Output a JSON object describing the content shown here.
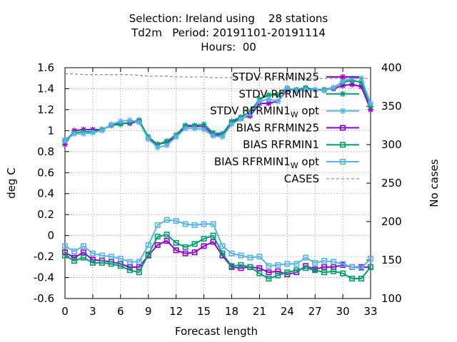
{
  "title_lines": [
    "Selection: Ireland using    28 stations",
    "Td2m   Period: 20191101-20191114",
    "Hours:  00"
  ],
  "chart_data": {
    "type": "line",
    "xlabel": "Forecast length",
    "ylabel": "deg C",
    "y2label": "No cases",
    "xlim": [
      0,
      33
    ],
    "ylim": [
      -0.6,
      1.6
    ],
    "y2lim": [
      100,
      400
    ],
    "x_ticks": [
      "0",
      "3",
      "6",
      "9",
      "12",
      "15",
      "18",
      "21",
      "24",
      "27",
      "30",
      "33"
    ],
    "y_ticks": [
      "-0.6",
      "-0.4",
      "-0.2",
      "0",
      "0.2",
      "0.4",
      "0.6",
      "0.8",
      "1",
      "1.2",
      "1.4",
      "1.6"
    ],
    "y2_ticks": [
      "100",
      "150",
      "200",
      "250",
      "300",
      "350",
      "400"
    ],
    "grid": true,
    "legend_position": "top-right",
    "x": [
      0,
      1,
      2,
      3,
      4,
      5,
      6,
      7,
      8,
      9,
      10,
      11,
      12,
      13,
      14,
      15,
      16,
      17,
      18,
      19,
      20,
      21,
      22,
      23,
      24,
      25,
      26,
      27,
      28,
      29,
      30,
      31,
      32,
      33
    ],
    "series": [
      {
        "name": "STDV RFRMIN25",
        "name_main": "STDV RFRMIN25",
        "name_sub": "",
        "name_tail": "",
        "color": "#9400d3",
        "marker": "star",
        "axis": "y",
        "values": [
          0.87,
          1.0,
          1.01,
          1.01,
          1.01,
          1.05,
          1.07,
          1.07,
          1.09,
          0.92,
          0.87,
          0.89,
          0.94,
          1.04,
          1.04,
          1.04,
          0.96,
          0.96,
          1.08,
          1.12,
          1.14,
          1.26,
          1.26,
          1.28,
          1.39,
          1.39,
          1.4,
          1.39,
          1.39,
          1.4,
          1.43,
          1.44,
          1.42,
          1.2
        ]
      },
      {
        "name": "STDV RFRMIN1",
        "name_main": "STDV RFRMIN1",
        "name_sub": "",
        "name_tail": "",
        "color": "#009e73",
        "marker": "star",
        "axis": "y",
        "values": [
          0.91,
          0.98,
          0.99,
          0.99,
          1.01,
          1.05,
          1.06,
          1.08,
          1.1,
          0.94,
          0.87,
          0.9,
          0.96,
          1.05,
          1.05,
          1.06,
          0.98,
          0.97,
          1.09,
          1.13,
          1.18,
          1.3,
          1.34,
          1.34,
          1.4,
          1.39,
          1.41,
          1.39,
          1.39,
          1.41,
          1.46,
          1.48,
          1.46,
          1.23
        ]
      },
      {
        "name": "STDV RFRMIN1_W opt",
        "name_main": "STDV RFRMIN1",
        "name_sub": "W",
        "name_tail": " opt",
        "color": "#56b4e9",
        "marker": "star",
        "axis": "y",
        "values": [
          0.9,
          0.97,
          0.97,
          0.98,
          1.0,
          1.06,
          1.09,
          1.1,
          1.08,
          0.92,
          0.84,
          0.86,
          0.94,
          1.02,
          1.02,
          1.01,
          0.95,
          0.94,
          1.06,
          1.11,
          1.16,
          1.28,
          1.3,
          1.28,
          1.41,
          1.38,
          1.39,
          1.39,
          1.38,
          1.41,
          1.47,
          1.5,
          1.5,
          1.26
        ]
      },
      {
        "name": "BIAS RFRMIN25",
        "name_main": "BIAS RFRMIN25",
        "name_sub": "",
        "name_tail": "",
        "color": "#9400d3",
        "marker": "square",
        "axis": "y",
        "values": [
          -0.16,
          -0.21,
          -0.16,
          -0.23,
          -0.24,
          -0.25,
          -0.27,
          -0.3,
          -0.3,
          -0.19,
          -0.09,
          -0.05,
          -0.14,
          -0.17,
          -0.16,
          -0.1,
          -0.06,
          -0.19,
          -0.3,
          -0.31,
          -0.3,
          -0.31,
          -0.35,
          -0.34,
          -0.37,
          -0.35,
          -0.29,
          -0.32,
          -0.3,
          -0.3,
          -0.28,
          -0.3,
          -0.3,
          -0.3
        ]
      },
      {
        "name": "BIAS RFRMIN1",
        "name_main": "BIAS RFRMIN1",
        "name_sub": "",
        "name_tail": "",
        "color": "#009e73",
        "marker": "square",
        "axis": "y",
        "values": [
          -0.19,
          -0.24,
          -0.21,
          -0.26,
          -0.26,
          -0.27,
          -0.29,
          -0.33,
          -0.35,
          -0.18,
          -0.01,
          0.01,
          -0.07,
          -0.11,
          -0.08,
          -0.03,
          0.0,
          -0.17,
          -0.29,
          -0.28,
          -0.3,
          -0.36,
          -0.41,
          -0.38,
          -0.35,
          -0.33,
          -0.31,
          -0.33,
          -0.35,
          -0.34,
          -0.36,
          -0.41,
          -0.41,
          -0.3
        ]
      },
      {
        "name": "BIAS RFRMIN1_W opt",
        "name_main": "BIAS RFRMIN1",
        "name_sub": "W",
        "name_tail": " opt",
        "color": "#56b4e9",
        "marker": "square",
        "axis": "y",
        "values": [
          -0.1,
          -0.15,
          -0.1,
          -0.17,
          -0.19,
          -0.2,
          -0.22,
          -0.25,
          -0.25,
          -0.09,
          0.1,
          0.15,
          0.14,
          0.11,
          0.1,
          0.11,
          0.11,
          -0.1,
          -0.17,
          -0.19,
          -0.21,
          -0.2,
          -0.29,
          -0.28,
          -0.27,
          -0.27,
          -0.21,
          -0.26,
          -0.24,
          -0.25,
          -0.27,
          -0.3,
          -0.31,
          -0.22
        ]
      },
      {
        "name": "CASES",
        "name_main": "CASES",
        "name_sub": "",
        "name_tail": "",
        "color": "#888888",
        "marker": "none",
        "axis": "y2",
        "dash": true,
        "values": [
          392,
          392,
          391,
          391,
          391,
          391,
          391,
          391,
          390,
          389,
          389,
          389,
          388,
          388,
          388,
          388,
          387,
          387,
          387,
          387,
          387,
          387,
          386,
          386,
          386,
          386,
          386,
          386,
          386,
          386,
          386,
          386,
          386,
          386
        ]
      }
    ]
  }
}
